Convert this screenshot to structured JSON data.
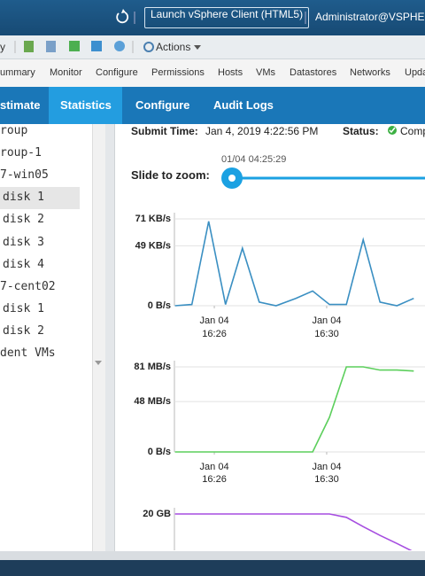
{
  "header": {
    "launch_button": "Launch vSphere Client (HTML5)",
    "user": "Administrator@VSPHERE"
  },
  "toolbar": {
    "partial_label": "y",
    "actions": "Actions"
  },
  "nav_tabs": [
    "ummary",
    "Monitor",
    "Configure",
    "Permissions",
    "Hosts",
    "VMs",
    "Datastores",
    "Networks",
    "Upda"
  ],
  "sub_tabs": [
    "stimate",
    "Statistics",
    "Configure",
    "Audit Logs"
  ],
  "tree": [
    "roup",
    "roup-1",
    "7-win05",
    "disk 1",
    "disk 2",
    "disk 3",
    "disk 4",
    "7-cent02",
    "disk 1",
    "disk 2",
    "dent VMs"
  ],
  "task": {
    "submit_label": "Submit Time:",
    "submit_time": "Jan 4, 2019 4:22:56 PM",
    "status_label": "Status:",
    "status": "Compl"
  },
  "slider": {
    "label": "Slide to zoom:",
    "value_label": "01/04 04:25:29"
  },
  "chart_data": [
    {
      "type": "line",
      "xlim": [
        24.58,
        33.5
      ],
      "ylim": [
        0,
        71
      ],
      "yticks": [
        {
          "value": 0,
          "label": "0 B/s"
        },
        {
          "value": 49,
          "label": "49 KB/s"
        },
        {
          "value": 71,
          "label": "71 KB/s"
        }
      ],
      "xticks": [
        {
          "value": 26,
          "label": [
            "Jan 04",
            "16:26"
          ]
        },
        {
          "value": 30,
          "label": [
            "Jan 04",
            "16:30"
          ]
        }
      ],
      "grid": true,
      "series": [
        {
          "color": "#3a8fc2",
          "x": [
            24.6,
            25.2,
            25.8,
            26.4,
            27.0,
            27.6,
            28.2,
            28.9,
            29.5,
            30.1,
            30.7,
            31.3,
            31.9,
            32.5,
            33.1
          ],
          "values": [
            0,
            1,
            69,
            1,
            47,
            3,
            0,
            6,
            12,
            1,
            1,
            54,
            3,
            0,
            6
          ]
        }
      ]
    },
    {
      "type": "line",
      "xlim": [
        24.58,
        33.5
      ],
      "ylim": [
        0,
        81
      ],
      "yticks": [
        {
          "value": 0,
          "label": "0 B/s"
        },
        {
          "value": 48,
          "label": "48 MB/s"
        },
        {
          "value": 81,
          "label": "81 MB/s"
        }
      ],
      "xticks": [
        {
          "value": 26,
          "label": [
            "Jan 04",
            "16:26"
          ]
        },
        {
          "value": 30,
          "label": [
            "Jan 04",
            "16:30"
          ]
        }
      ],
      "grid": true,
      "series": [
        {
          "color": "#5ccf5c",
          "x": [
            24.6,
            25.2,
            25.8,
            26.4,
            27.0,
            27.6,
            28.2,
            28.9,
            29.5,
            30.1,
            30.7,
            31.3,
            31.9,
            32.5,
            33.1
          ],
          "values": [
            0,
            0,
            0,
            0,
            0,
            0,
            0,
            0,
            0,
            33,
            81,
            81,
            78,
            78,
            77
          ]
        }
      ]
    },
    {
      "type": "line",
      "xlim": [
        24.58,
        33.5
      ],
      "ylim": [
        0,
        20
      ],
      "yticks": [
        {
          "value": 20,
          "label": "20 GB"
        }
      ],
      "grid": true,
      "series": [
        {
          "color": "#a64de0",
          "x": [
            24.6,
            25.2,
            25.8,
            26.4,
            27.0,
            27.6,
            28.2,
            28.9,
            29.5,
            30.1,
            30.7,
            31.3,
            31.9,
            32.5,
            33.1
          ],
          "values": [
            20,
            20,
            20,
            20,
            20,
            20,
            20,
            20,
            20,
            20,
            19.2,
            17,
            14.9,
            13,
            11
          ]
        }
      ]
    }
  ]
}
